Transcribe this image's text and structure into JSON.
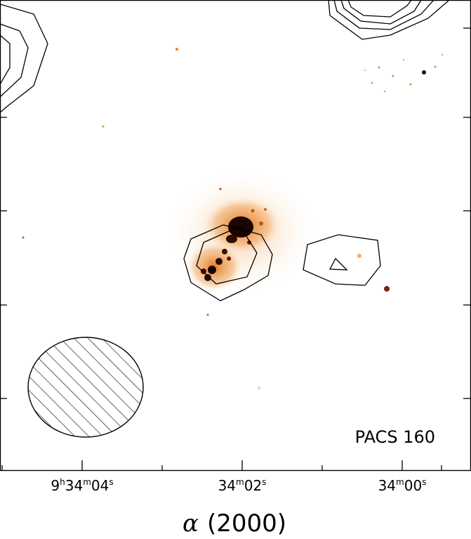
{
  "panel": {
    "band_label": "PACS 160"
  },
  "xaxis": {
    "title_symbol": "α",
    "title_epoch": "(2000)",
    "ticks": [
      {
        "pre": "9",
        "h": "h",
        "mid": "34",
        "m": "m",
        "val": "04",
        "s": "s"
      },
      {
        "pre": "",
        "h": "",
        "mid": "34",
        "m": "m",
        "val": "02",
        "s": "s"
      },
      {
        "pre": "",
        "h": "",
        "mid": "34",
        "m": "m",
        "val": "00",
        "s": "s"
      }
    ]
  },
  "colors": {
    "frame": "#000000",
    "contour": "#000000",
    "emission_core": "#1a0500",
    "emission_mid": "#d9670f",
    "emission_faint": "#f6c28a",
    "background": "#ffffff"
  },
  "beam": {
    "style": "hatched-ellipse"
  }
}
